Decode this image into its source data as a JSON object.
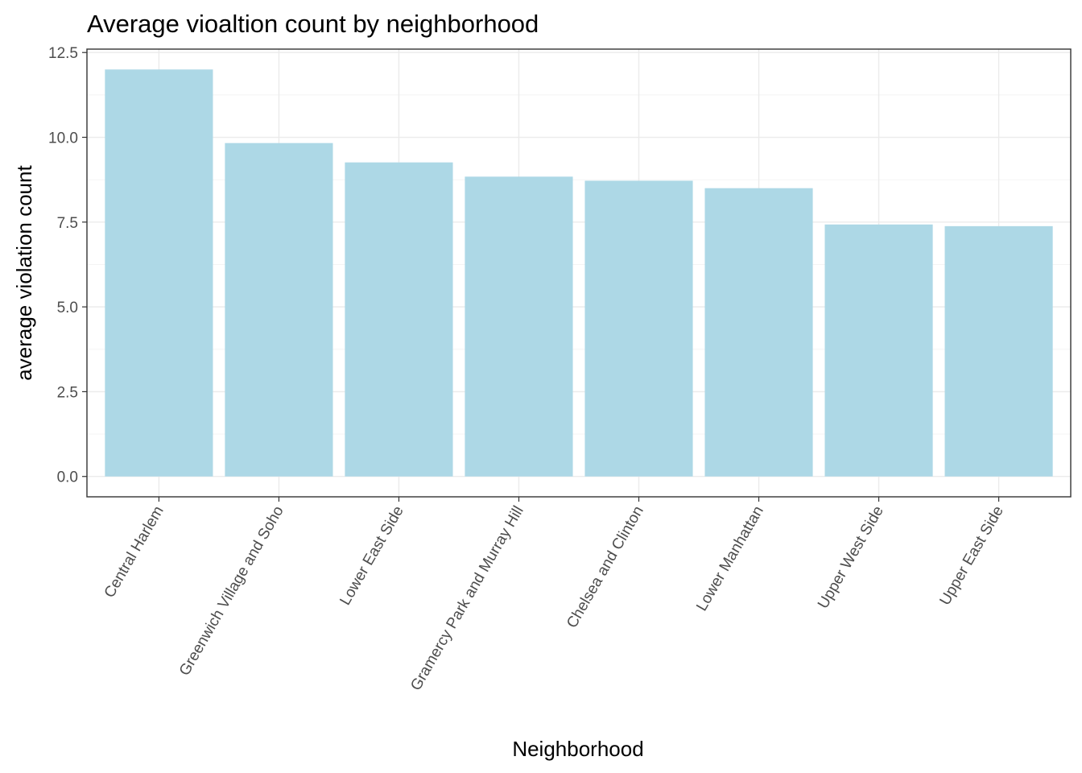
{
  "chart_data": {
    "type": "bar",
    "title": "Average vioaltion count by neighborhood",
    "xlabel": "Neighborhood",
    "ylabel": "average violation count",
    "categories": [
      "Central Harlem",
      "Greenwich Village and Soho",
      "Lower East Side",
      "Gramercy Park and Murray Hill",
      "Chelsea and Clinton",
      "Lower Manhattan",
      "Upper West Side",
      "Upper East Side"
    ],
    "values": [
      12.0,
      9.83,
      9.26,
      8.84,
      8.72,
      8.5,
      7.43,
      7.38
    ],
    "ylim": [
      -0.6,
      12.6
    ],
    "yticks": [
      0,
      2.5,
      5,
      7.5,
      10,
      12.5
    ],
    "ytick_labels": [
      "0.0",
      "2.5",
      "5.0",
      "7.5",
      "10.0",
      "12.5"
    ],
    "grid": true,
    "bar_color": "#add8e6"
  }
}
